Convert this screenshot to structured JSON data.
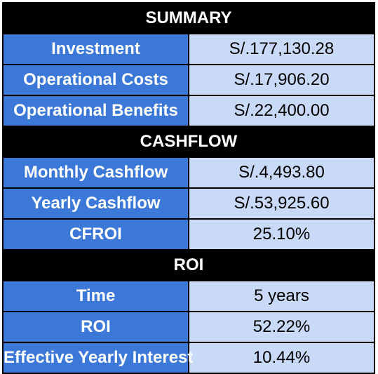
{
  "sections": [
    {
      "title": "SUMMARY",
      "rows": [
        {
          "label": "Investment",
          "value": "S/.177,130.28"
        },
        {
          "label": "Operational Costs",
          "value": "S/.17,906.20"
        },
        {
          "label": "Operational Benefits",
          "value": "S/.22,400.00"
        }
      ]
    },
    {
      "title": "CASHFLOW",
      "rows": [
        {
          "label": "Monthly Cashflow",
          "value": "S/.4,493.80"
        },
        {
          "label": "Yearly Cashflow",
          "value": "S/.53,925.60"
        },
        {
          "label": "CFROI",
          "value": "25.10%"
        }
      ]
    },
    {
      "title": "ROI",
      "rows": [
        {
          "label": "Time",
          "value": "5 years"
        },
        {
          "label": "ROI",
          "value": "52.22%"
        },
        {
          "label": "Effective Yearly Interest",
          "value": "10.44%"
        }
      ]
    }
  ],
  "colors": {
    "header_bg": "#000000",
    "label_bg": "#3c78d8",
    "value_bg": "#c9daf8"
  }
}
